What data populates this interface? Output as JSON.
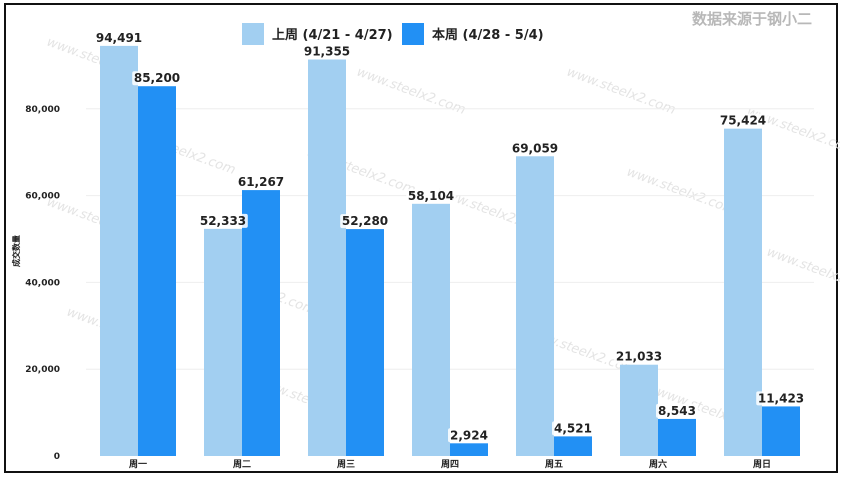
{
  "watermark": "数据来源于钢小二",
  "background_watermark": "www.steelx2.com",
  "chart_data": {
    "type": "bar",
    "categories": [
      "周一",
      "周二",
      "周三",
      "周四",
      "周五",
      "周六",
      "周日"
    ],
    "series": [
      {
        "name": "上周 (4/21 - 4/27)",
        "color": "#a2cff1",
        "values": [
          94491,
          52333,
          91355,
          58104,
          69059,
          21033,
          75424
        ]
      },
      {
        "name": "本周 (4/28 - 5/4)",
        "color": "#2290f4",
        "values": [
          85200,
          61267,
          52280,
          2924,
          4521,
          8543,
          11423
        ]
      }
    ],
    "data_labels": [
      [
        "94,491",
        "52,333",
        "91,355",
        "58,104",
        "69,059",
        "21,033",
        "75,424"
      ],
      [
        "85,200",
        "61,267",
        "52,280",
        "2,924",
        "4,521",
        "8,543",
        "11,423"
      ]
    ],
    "yticks": [
      0,
      20000,
      40000,
      60000,
      80000
    ],
    "ytick_labels": [
      "0",
      "20,000",
      "40,000",
      "60,000",
      "80,000"
    ],
    "ylabel": "成交数量",
    "xlabel": "",
    "ylim": [
      0,
      97000
    ],
    "legend_position": "top-center",
    "grid": true
  }
}
